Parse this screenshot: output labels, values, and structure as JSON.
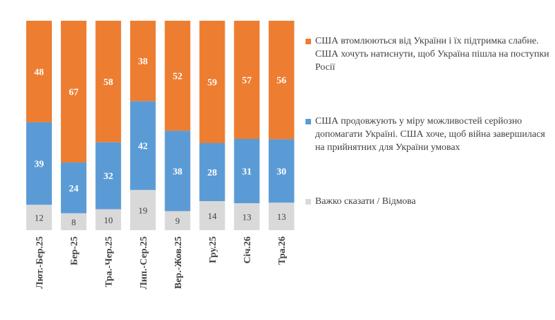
{
  "chart_data": {
    "type": "bar",
    "stacked": true,
    "percent": true,
    "categories": [
      "Лют.-Бер.25",
      "Бер-25",
      "Тра.-Чер.25",
      "Лип.-Сер.25",
      "Вер.-Жов.25",
      "Гру.25",
      "Січ.26",
      "Тра.26"
    ],
    "series": [
      {
        "name": "Важко сказати / Відмова",
        "color": "#d9d9d9",
        "label_color": "#404040",
        "values": [
          12,
          8,
          10,
          19,
          9,
          14,
          13,
          13
        ]
      },
      {
        "name": "США продовжують у міру можливостей серйозно допомагати Україні. США хоче, щоб війна завершилася на прийнятних для України умовах",
        "color": "#5b9bd5",
        "label_color": "#ffffff",
        "values": [
          39,
          24,
          32,
          42,
          38,
          28,
          31,
          30
        ]
      },
      {
        "name": "США втомлюються від України і їх підтримка слабне. США хочуть натиснути, щоб Україна пішла на поступки Росії",
        "color": "#ed7d31",
        "label_color": "#ffffff",
        "values": [
          48,
          67,
          58,
          38,
          52,
          59,
          57,
          56
        ]
      }
    ],
    "legend_position": "right",
    "grid": false
  }
}
